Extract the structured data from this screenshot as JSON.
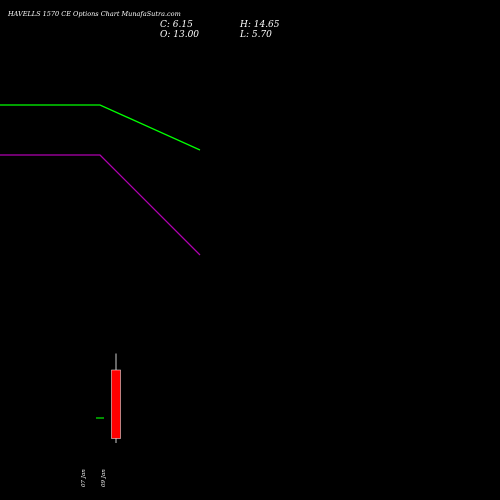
{
  "chart_data": {
    "type": "candlestick",
    "title": "HAVELLS 1570 CE Options Chart MunafaSutra.com",
    "ohlc_readout": {
      "close_label": "C: 6.15",
      "open_label": "O: 13.00",
      "high_label": "H: 14.65",
      "low_label": "L: 5.70"
    },
    "x_labels": [
      "07 Jan",
      "09 Jan"
    ],
    "candles": [
      {
        "label": "07 Jan",
        "open": 8.2,
        "close": 8.2,
        "high": 8.2,
        "low": 8.2
      },
      {
        "label": "09 Jan",
        "open": 13.0,
        "close": 6.15,
        "high": 14.65,
        "low": 5.7
      }
    ],
    "series": [
      {
        "values": [
          39.5,
          39.5,
          35.0
        ]
      },
      {
        "values": [
          34.5,
          34.5,
          24.5
        ]
      }
    ],
    "colors": {
      "background": "#000000",
      "bear_candle": "#ff0000",
      "bull_candle": "#00c000",
      "wick": "#ffffff",
      "line_1": "#00ff00",
      "line_2": "#b000b0"
    },
    "ylim": [
      0,
      50
    ]
  }
}
